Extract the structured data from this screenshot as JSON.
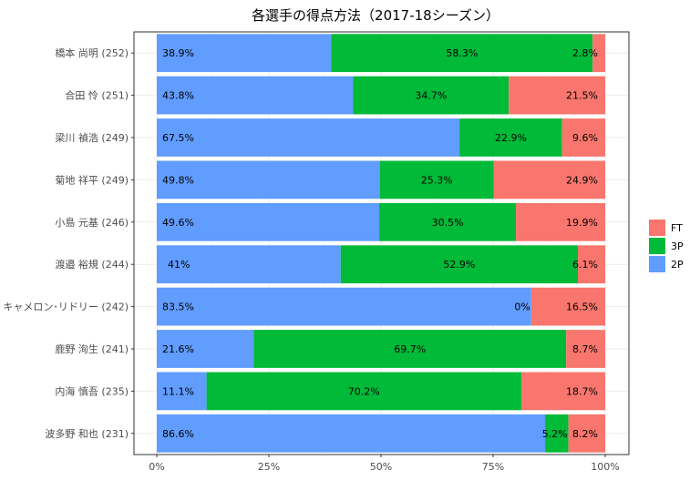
{
  "chart_data": {
    "type": "bar",
    "orientation": "horizontal",
    "stacked": "percent",
    "title": "各選手の得点方法（2017-18シーズン）",
    "xlabel": "",
    "ylabel": "",
    "xlim": [
      0,
      100
    ],
    "x_ticks": [
      "0%",
      "25%",
      "50%",
      "75%",
      "100%"
    ],
    "grid": true,
    "legend_position": "right",
    "legend": [
      "FT",
      "3P",
      "2P"
    ],
    "categories": [
      "橋本 尚明 (252)",
      "合田 怜 (251)",
      "梁川 禎浩 (249)",
      "菊地 祥平 (249)",
      "小島 元基 (246)",
      "渡邉 裕規 (244)",
      "キャメロン･リドリー (242)",
      "鹿野 洵生 (241)",
      "内海 慎吾 (235)",
      "波多野 和也 (231)"
    ],
    "series": [
      {
        "name": "2P",
        "color": "#619CFF",
        "values": [
          38.9,
          43.8,
          67.5,
          49.8,
          49.6,
          41,
          83.5,
          21.6,
          11.1,
          86.6
        ],
        "labels": [
          "38.9%",
          "43.8%",
          "67.5%",
          "49.8%",
          "49.6%",
          "41%",
          "83.5%",
          "21.6%",
          "11.1%",
          "86.6%"
        ]
      },
      {
        "name": "3P",
        "color": "#00BA38",
        "values": [
          58.3,
          34.7,
          22.9,
          25.3,
          30.5,
          52.9,
          0,
          69.7,
          70.2,
          5.2
        ],
        "labels": [
          "58.3%",
          "34.7%",
          "22.9%",
          "25.3%",
          "30.5%",
          "52.9%",
          "0%",
          "69.7%",
          "70.2%",
          "5.2%"
        ]
      },
      {
        "name": "FT",
        "color": "#F8766D",
        "values": [
          2.8,
          21.5,
          9.6,
          24.9,
          19.9,
          6.1,
          16.5,
          8.7,
          18.7,
          8.2
        ],
        "labels": [
          "2.8%",
          "21.5%",
          "9.6%",
          "24.9%",
          "19.9%",
          "6.1%",
          "16.5%",
          "8.7%",
          "18.7%",
          "8.2%"
        ]
      }
    ]
  }
}
